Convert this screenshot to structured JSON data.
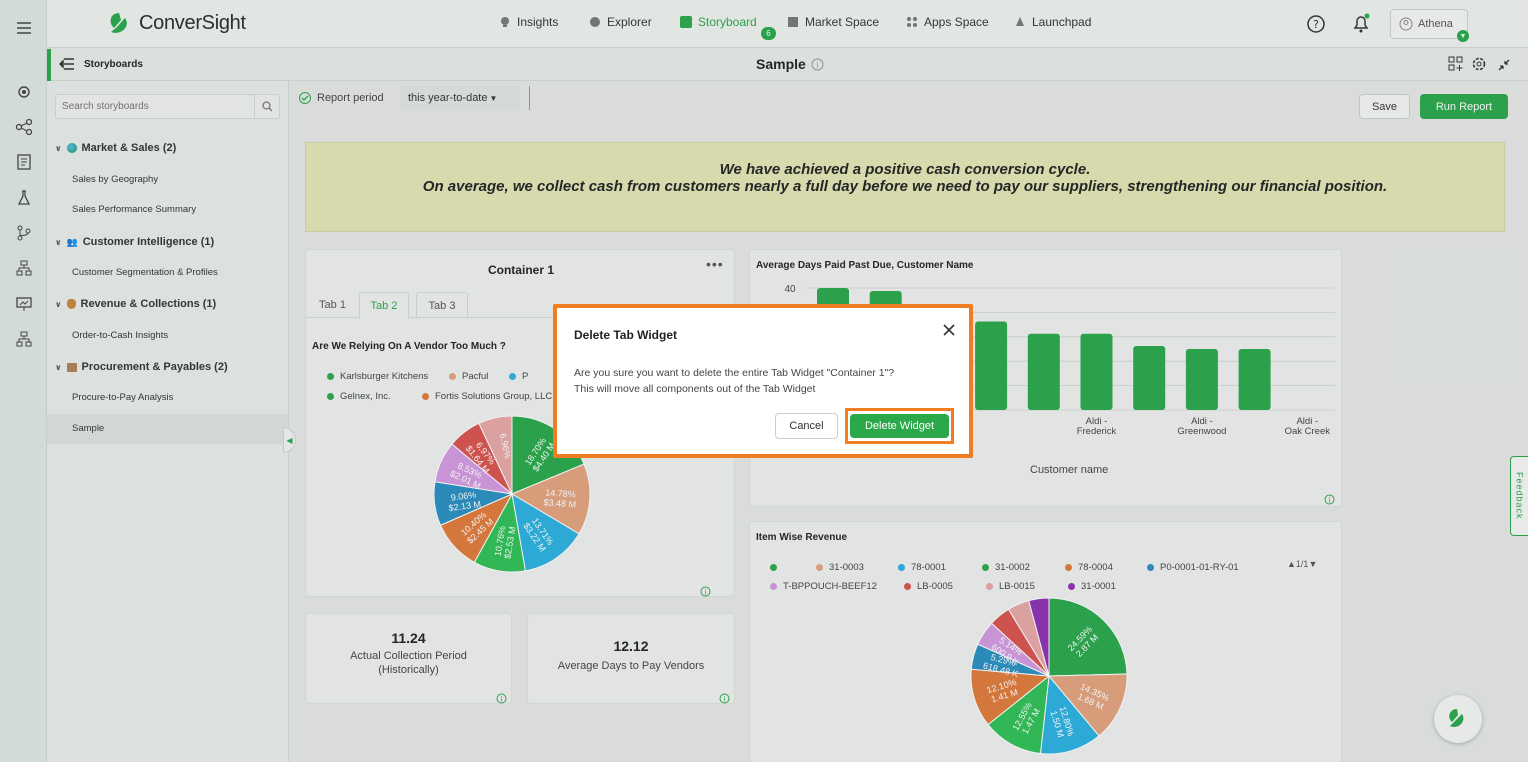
{
  "app": {
    "brand": "ConverSight"
  },
  "nav": [
    {
      "label": "Insights",
      "icon": "bulb-icon"
    },
    {
      "label": "Explorer",
      "icon": "explorer-icon"
    },
    {
      "label": "Storyboard",
      "icon": "storyboard-icon",
      "badge": "6",
      "active": true
    },
    {
      "label": "Market Space",
      "icon": "store-icon"
    },
    {
      "label": "Apps Space",
      "icon": "apps-icon"
    },
    {
      "label": "Launchpad",
      "icon": "rocket-icon"
    }
  ],
  "user": {
    "name": "Athena"
  },
  "storyboards_title": "Storyboards",
  "page_title": "Sample",
  "search": {
    "placeholder": "Search storyboards"
  },
  "sidebar": {
    "categories": [
      {
        "label": "Market & Sales (2)",
        "icon": "globe-icon",
        "items": [
          "Sales by Geography",
          "Sales Performance Summary"
        ]
      },
      {
        "label": "Customer Intelligence (1)",
        "icon": "people-icon",
        "items": [
          "Customer Segmentation & Profiles"
        ]
      },
      {
        "label": "Revenue & Collections (1)",
        "icon": "money-bag-icon",
        "items": [
          "Order-to-Cash Insights"
        ]
      },
      {
        "label": "Procurement & Payables (2)",
        "icon": "box-icon",
        "items": [
          "Procure-to-Pay Analysis",
          "Sample"
        ]
      }
    ]
  },
  "toolbar": {
    "report_period_label": "Report period",
    "report_period_value": "this year-to-date",
    "save": "Save",
    "run": "Run Report"
  },
  "banner": {
    "line1": "We have achieved a positive cash conversion cycle.",
    "line2": "On average, we collect cash from customers nearly a full day before we need to pay our suppliers, strengthening our financial position."
  },
  "container": {
    "title": "Container 1",
    "tabs": [
      "Tab 1",
      "Tab 2",
      "Tab 3"
    ],
    "active_tab": 1,
    "chart_title": "Are We Relying On A Vendor Too Much ?",
    "legend": [
      {
        "name": "Karlsburger Kitchens",
        "color": "#2aa84a"
      },
      {
        "name": "Pacful",
        "color": "#e3a27d"
      },
      {
        "name": "P",
        "color": "#2bb0e0"
      },
      {
        "name": "Gelnex, Inc.",
        "color": "#2aa84a"
      },
      {
        "name": "Fortis Solutions Group, LLC",
        "color": "#e07a3a"
      }
    ]
  },
  "kpis": [
    {
      "value": "11.24",
      "label1": "Actual Collection Period",
      "label2": "(Historically)"
    },
    {
      "value": "12.12",
      "label1": "Average Days to Pay Vendors",
      "label2": ""
    }
  ],
  "bar_card": {
    "title": "Average Days Paid Past Due, Customer Name",
    "xlabel": "Customer name",
    "y_tick": "40",
    "x_labels": [
      [
        "Aldi -",
        "Frederick"
      ],
      [
        "Aldi -",
        "Greenwood"
      ],
      [
        "Aldi -",
        "Oak Creek"
      ]
    ]
  },
  "item_card": {
    "title": "Item Wise Revenue",
    "pager": "1/1",
    "legend": [
      {
        "name": "",
        "color": "#2aa84a"
      },
      {
        "name": "31-0003",
        "color": "#e3a27d"
      },
      {
        "name": "78-0001",
        "color": "#2bb0e0"
      },
      {
        "name": "31-0002",
        "color": "#2aa84a"
      },
      {
        "name": "78-0004",
        "color": "#e07a3a"
      },
      {
        "name": "P0-0001-01-RY-01",
        "color": "#2a8fc0"
      },
      {
        "name": "T-BPPOUCH-BEEF12",
        "color": "#d49ae0"
      },
      {
        "name": "LB-0005",
        "color": "#d9534f"
      },
      {
        "name": "LB-0015",
        "color": "#e8a6a6"
      },
      {
        "name": "31-0001",
        "color": "#8e2fb5"
      }
    ]
  },
  "vendor_pie": [
    {
      "label": "18.70%",
      "value_label": "$4.40 M",
      "pct": 18.7,
      "color": "#2aa84a"
    },
    {
      "label": "14.78%",
      "value_label": "$3.48 M",
      "pct": 14.78,
      "color": "#e3a27d"
    },
    {
      "label": "13.71%",
      "value_label": "$3.22 M",
      "pct": 13.71,
      "color": "#2bb0e0"
    },
    {
      "label": "10.76%",
      "value_label": "$2.53 M",
      "pct": 10.76,
      "color": "#2fbf55"
    },
    {
      "label": "10.40%",
      "value_label": "$2.45 M",
      "pct": 10.4,
      "color": "#e07a3a"
    },
    {
      "label": "9.06%",
      "value_label": "$2.13 M",
      "pct": 9.06,
      "color": "#2a8fc0"
    },
    {
      "label": "8.53%",
      "value_label": "$2.01 M",
      "pct": 8.53,
      "color": "#d49ae0"
    },
    {
      "label": "6.97%",
      "value_label": "$1.64 M",
      "pct": 6.97,
      "color": "#d9534f"
    },
    {
      "label": "6.96%",
      "value_label": "",
      "pct": 6.96,
      "color": "#e8a6a6"
    }
  ],
  "item_pie": [
    {
      "label": "24.59%",
      "value_label": "2.87 M",
      "pct": 24.59,
      "color": "#2aa84a"
    },
    {
      "label": "14.35%",
      "value_label": "1.68 M",
      "pct": 14.35,
      "color": "#e3a27d"
    },
    {
      "label": "12.80%",
      "value_label": "1.50 M",
      "pct": 12.8,
      "color": "#2bb0e0"
    },
    {
      "label": "12.55%",
      "value_label": "1.47 M",
      "pct": 12.55,
      "color": "#2fbf55"
    },
    {
      "label": "12.10%",
      "value_label": "1.41 M",
      "pct": 12.1,
      "color": "#e07a3a"
    },
    {
      "label": "5.29%",
      "value_label": "618.48 K",
      "pct": 5.29,
      "color": "#2a8fc0"
    },
    {
      "label": "5.14%",
      "value_label": "600.9 K",
      "pct": 5.14,
      "color": "#d49ae0"
    },
    {
      "label": "",
      "value_label": "",
      "pct": 4.5,
      "color": "#d9534f"
    },
    {
      "label": "",
      "value_label": "",
      "pct": 4.5,
      "color": "#e8a6a6"
    },
    {
      "label": "",
      "value_label": "",
      "pct": 4.18,
      "color": "#8e2fb5"
    }
  ],
  "bars": [
    40,
    39,
    30,
    29,
    25,
    25,
    21,
    20,
    20
  ],
  "feedback": "Feedback",
  "dialog": {
    "title": "Delete Tab Widget",
    "message1": "Are you sure you want to delete the entire Tab Widget \"Container 1\"?",
    "message2": "This will move all components out of the Tab Widget",
    "cancel": "Cancel",
    "confirm": "Delete Widget"
  },
  "colors": {
    "accent": "#2aa84a",
    "highlight": "#f07d22"
  }
}
